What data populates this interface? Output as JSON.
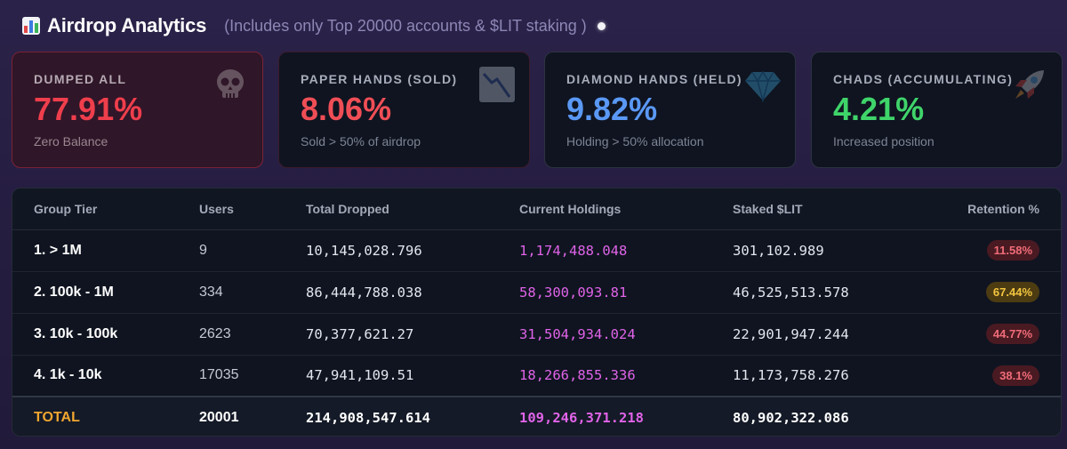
{
  "header": {
    "title": "Airdrop Analytics",
    "subtitle": "(Includes only Top 20000 accounts & $LIT staking )"
  },
  "cards": [
    {
      "label": "DUMPED ALL",
      "value": "77.91%",
      "sub": "Zero Balance",
      "value_color": "#ef3e4c",
      "icon": "skull-icon"
    },
    {
      "label": "PAPER HANDS (SOLD)",
      "value": "8.06%",
      "sub": "Sold > 50% of airdrop",
      "value_color": "#f04e56",
      "icon": "chart-down-icon"
    },
    {
      "label": "DIAMOND HANDS (HELD)",
      "value": "9.82%",
      "sub": "Holding > 50% allocation",
      "value_color": "#5a98f5",
      "icon": "diamond-icon"
    },
    {
      "label": "CHADS (ACCUMULATING)",
      "value": "4.21%",
      "sub": "Increased position",
      "value_color": "#3fd46a",
      "icon": "rocket-icon"
    }
  ],
  "table": {
    "headers": [
      "Group Tier",
      "Users",
      "Total Dropped",
      "Current Holdings",
      "Staked $LIT",
      "Retention %"
    ],
    "rows": [
      {
        "tier": "1. > 1M",
        "users": "9",
        "dropped": "10,145,028.796",
        "holdings": "1,174,488.048",
        "staked": "301,102.989",
        "retention": "11.58%",
        "retention_status": "red"
      },
      {
        "tier": "2. 100k - 1M",
        "users": "334",
        "dropped": "86,444,788.038",
        "holdings": "58,300,093.81",
        "staked": "46,525,513.578",
        "retention": "67.44%",
        "retention_status": "amber"
      },
      {
        "tier": "3. 10k - 100k",
        "users": "2623",
        "dropped": "70,377,621.27",
        "holdings": "31,504,934.024",
        "staked": "22,901,947.244",
        "retention": "44.77%",
        "retention_status": "red"
      },
      {
        "tier": "4. 1k - 10k",
        "users": "17035",
        "dropped": "47,941,109.51",
        "holdings": "18,266,855.336",
        "staked": "11,173,758.276",
        "retention": "38.1%",
        "retention_status": "red"
      }
    ],
    "total": {
      "label": "TOTAL",
      "users": "20001",
      "dropped": "214,908,547.614",
      "holdings": "109,246,371.218",
      "staked": "80,902,322.086"
    }
  }
}
